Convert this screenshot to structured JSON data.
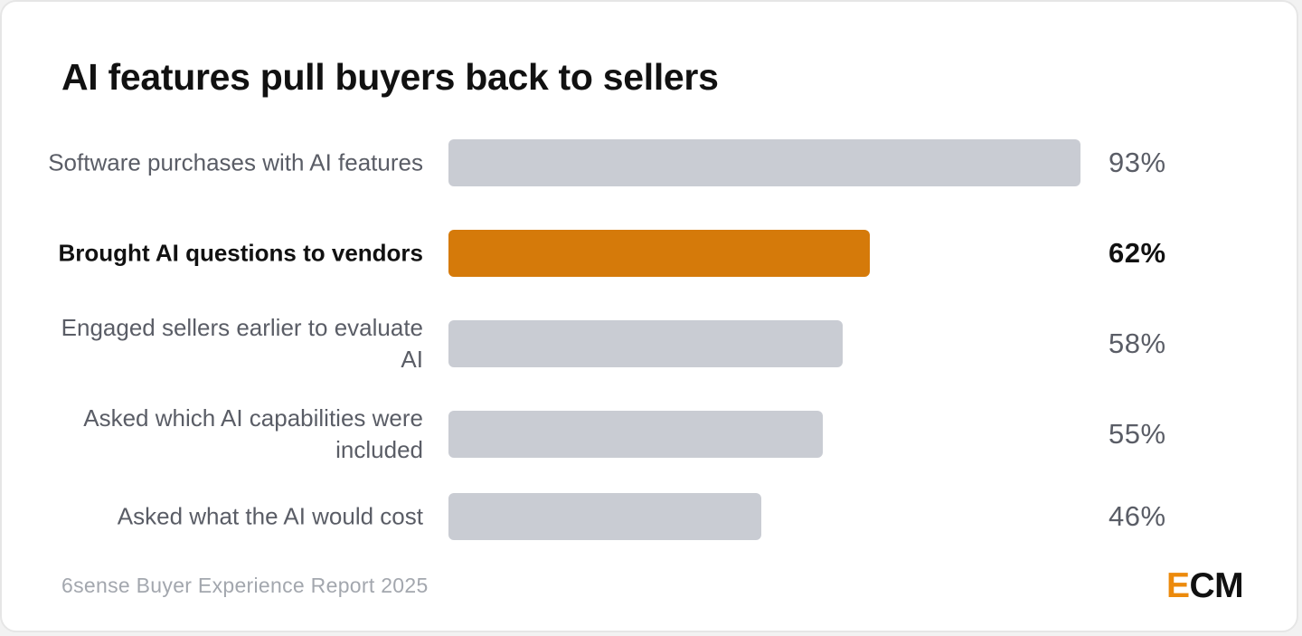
{
  "colors": {
    "accent": "#D57A0A",
    "bar": "#C9CCD3",
    "title": "#111111",
    "label": "#5A5D66",
    "source": "#A3A7AE",
    "logo_accent": "#EC8A0C"
  },
  "chart_data": {
    "type": "bar",
    "orientation": "horizontal",
    "title": "AI features pull buyers back to sellers",
    "categories": [
      "Software purchases with AI features",
      "Brought AI questions to vendors",
      "Engaged sellers earlier to evaluate AI",
      "Asked which AI capabilities were included",
      "Asked what the AI would cost"
    ],
    "values": [
      93,
      62,
      58,
      55,
      46
    ],
    "value_labels": [
      "93%",
      "62%",
      "58%",
      "55%",
      "46%"
    ],
    "highlight_index": 1,
    "xlim": [
      0,
      100
    ],
    "grid": false,
    "legend": "none"
  },
  "footer": {
    "source": "6sense Buyer Experience Report 2025",
    "logo_first_letter": "E",
    "logo_rest": "CM"
  }
}
